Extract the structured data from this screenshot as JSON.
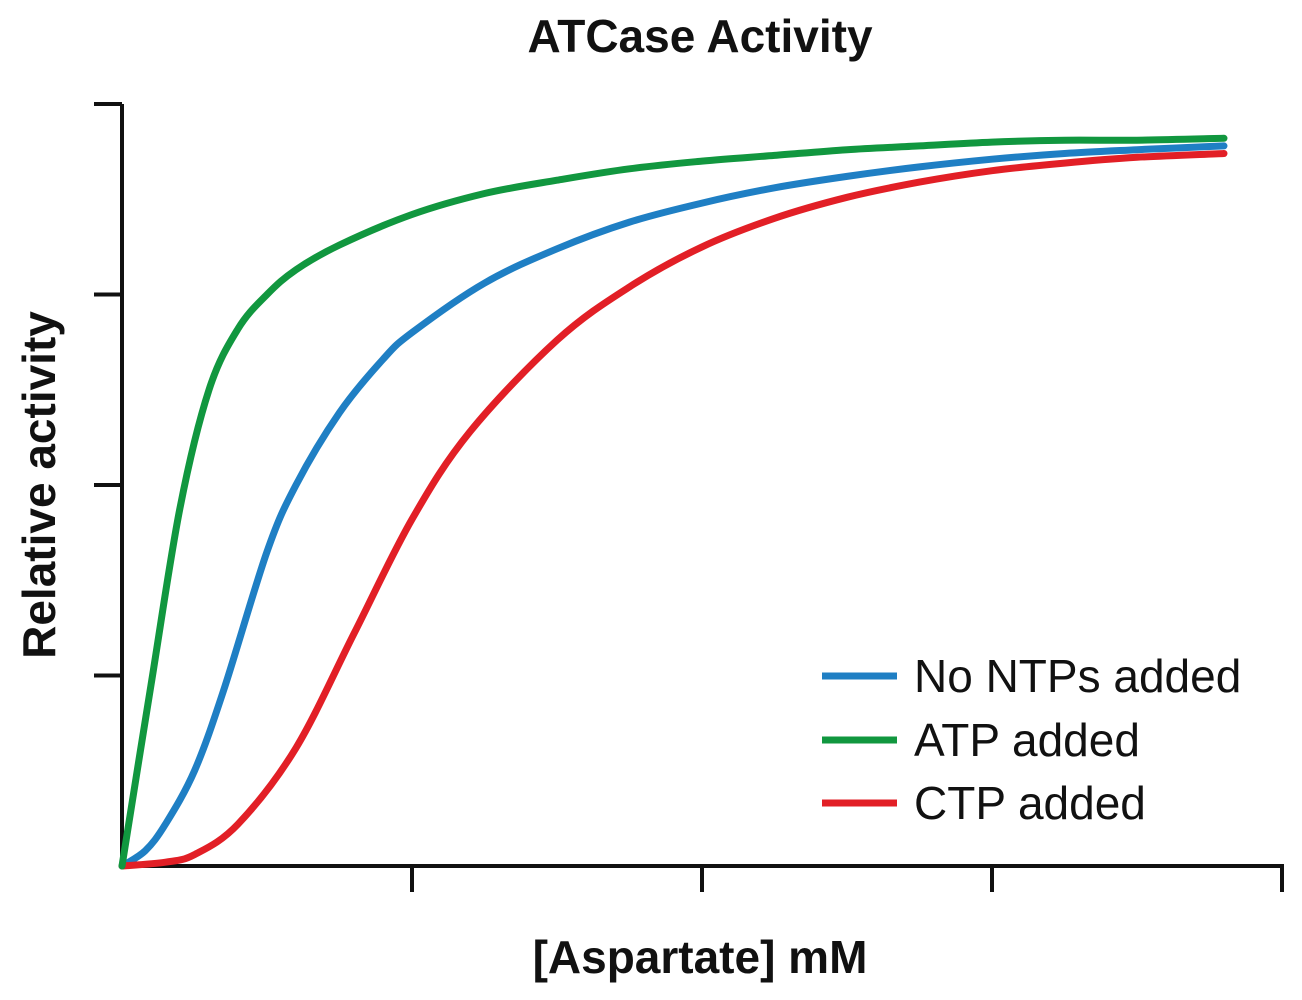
{
  "chart_data": {
    "type": "line",
    "title": "ATCase Activity",
    "xlabel": "[Aspartate] mM",
    "ylabel": "Relative activity",
    "xlim": [
      0,
      4
    ],
    "ylim": [
      0,
      4
    ],
    "x_ticks": [
      1,
      2,
      3,
      4
    ],
    "y_ticks": [
      1,
      2,
      3,
      4
    ],
    "show_tick_labels": false,
    "grid": false,
    "legend_position": "bottom-right",
    "series": [
      {
        "name": "No NTPs added",
        "color": "#1f7fc4",
        "x": [
          0.0,
          0.08,
          0.15,
          0.25,
          0.35,
          0.5,
          0.6,
          0.75,
          0.9,
          1.0,
          1.25,
          1.5,
          1.75,
          2.0,
          2.25,
          2.5,
          2.75,
          3.0,
          3.25,
          3.5,
          3.8
        ],
        "y": [
          0.0,
          0.08,
          0.22,
          0.5,
          0.92,
          1.65,
          2.0,
          2.38,
          2.66,
          2.8,
          3.06,
          3.24,
          3.38,
          3.48,
          3.56,
          3.62,
          3.67,
          3.71,
          3.74,
          3.76,
          3.78
        ]
      },
      {
        "name": "ATP added",
        "color": "#11973f",
        "x": [
          0.0,
          0.1,
          0.2,
          0.3,
          0.4,
          0.5,
          0.6,
          0.75,
          1.0,
          1.25,
          1.5,
          1.75,
          2.0,
          2.25,
          2.5,
          2.75,
          3.0,
          3.25,
          3.5,
          3.8
        ],
        "y": [
          0.0,
          0.95,
          1.88,
          2.5,
          2.82,
          3.0,
          3.13,
          3.26,
          3.42,
          3.53,
          3.6,
          3.66,
          3.7,
          3.73,
          3.76,
          3.78,
          3.8,
          3.81,
          3.81,
          3.82
        ]
      },
      {
        "name": "CTP added",
        "color": "#e21f26",
        "x": [
          0.0,
          0.15,
          0.25,
          0.4,
          0.6,
          0.8,
          1.0,
          1.2,
          1.5,
          1.75,
          2.0,
          2.25,
          2.5,
          2.75,
          3.0,
          3.25,
          3.5,
          3.8
        ],
        "y": [
          0.0,
          0.02,
          0.06,
          0.22,
          0.62,
          1.22,
          1.82,
          2.28,
          2.76,
          3.04,
          3.25,
          3.4,
          3.51,
          3.59,
          3.65,
          3.69,
          3.72,
          3.74
        ]
      }
    ]
  },
  "colors": {
    "axis": "#111111",
    "background": "#ffffff"
  }
}
